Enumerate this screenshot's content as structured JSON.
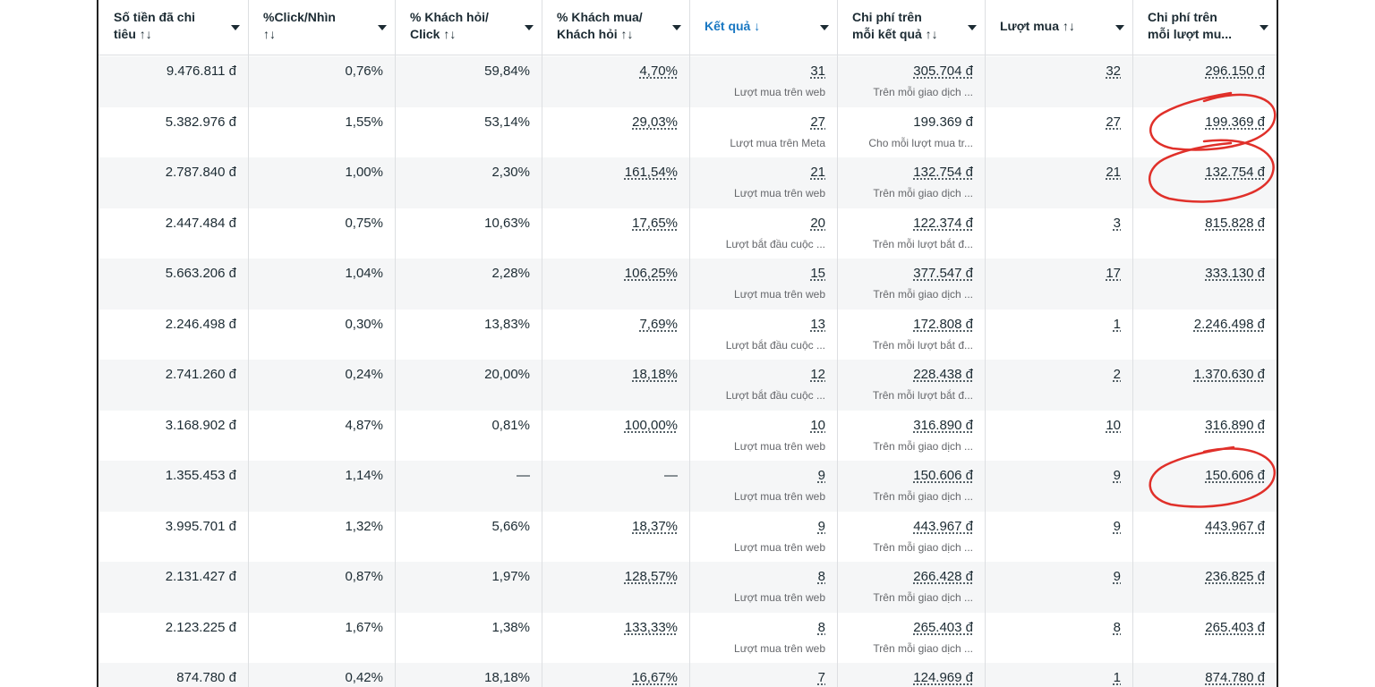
{
  "table": {
    "columns": [
      [
        "Số tiền đã chi",
        "tiêu ↑↓"
      ],
      [
        "%Click/Nhìn",
        "↑↓"
      ],
      [
        "% Khách hỏi/",
        "Click ↑↓"
      ],
      [
        "% Khách mua/",
        "Khách hỏi ↑↓"
      ],
      [
        "Kết quả ↓"
      ],
      [
        "Chi phí trên",
        "mỗi kết quả ↑↓"
      ],
      [
        "Lượt mua ↑↓"
      ],
      [
        "Chi phí trên",
        "mỗi lượt mu..."
      ]
    ],
    "rows": [
      [
        "9.476.811 đ",
        "0,76%",
        "59,84%",
        "4,70%",
        {
          "value": "31",
          "sub": "Lượt mua trên web"
        },
        {
          "value": "305.704 đ",
          "sub": "Trên mỗi giao dịch ..."
        },
        "32",
        "296.150 đ"
      ],
      [
        "5.382.976 đ",
        "1,55%",
        "53,14%",
        "29,03%",
        {
          "value": "27",
          "sub": "Lượt mua trên Meta"
        },
        {
          "value": "199.369 đ",
          "sub": "Cho mỗi lượt mua tr..."
        },
        "27",
        "199.369 đ"
      ],
      [
        "2.787.840 đ",
        "1,00%",
        "2,30%",
        "161,54%",
        {
          "value": "21",
          "sub": "Lượt mua trên web"
        },
        {
          "value": "132.754 đ",
          "sub": "Trên mỗi giao dịch ..."
        },
        "21",
        "132.754 đ"
      ],
      [
        "2.447.484 đ",
        "0,75%",
        "10,63%",
        "17,65%",
        {
          "value": "20",
          "sub": "Lượt bắt đầu cuộc ..."
        },
        {
          "value": "122.374 đ",
          "sub": "Trên mỗi lượt bắt đ..."
        },
        "3",
        "815.828 đ"
      ],
      [
        "5.663.206 đ",
        "1,04%",
        "2,28%",
        "106,25%",
        {
          "value": "15",
          "sub": "Lượt mua trên web"
        },
        {
          "value": "377.547 đ",
          "sub": "Trên mỗi giao dịch ..."
        },
        "17",
        "333.130 đ"
      ],
      [
        "2.246.498 đ",
        "0,30%",
        "13,83%",
        "7,69%",
        {
          "value": "13",
          "sub": "Lượt bắt đầu cuộc ..."
        },
        {
          "value": "172.808 đ",
          "sub": "Trên mỗi lượt bắt đ..."
        },
        "1",
        "2.246.498 đ"
      ],
      [
        "2.741.260 đ",
        "0,24%",
        "20,00%",
        "18,18%",
        {
          "value": "12",
          "sub": "Lượt bắt đầu cuộc ..."
        },
        {
          "value": "228.438 đ",
          "sub": "Trên mỗi lượt bắt đ..."
        },
        "2",
        "1.370.630 đ"
      ],
      [
        "3.168.902 đ",
        "4,87%",
        "0,81%",
        "100,00%",
        {
          "value": "10",
          "sub": "Lượt mua trên web"
        },
        {
          "value": "316.890 đ",
          "sub": "Trên mỗi giao dịch ..."
        },
        "10",
        "316.890 đ"
      ],
      [
        "1.355.453 đ",
        "1,14%",
        "—",
        "—",
        {
          "value": "9",
          "sub": "Lượt mua trên web"
        },
        {
          "value": "150.606 đ",
          "sub": "Trên mỗi giao dịch ..."
        },
        "9",
        "150.606 đ"
      ],
      [
        "3.995.701 đ",
        "1,32%",
        "5,66%",
        "18,37%",
        {
          "value": "9",
          "sub": "Lượt mua trên web"
        },
        {
          "value": "443.967 đ",
          "sub": "Trên mỗi giao dịch ..."
        },
        "9",
        "443.967 đ"
      ],
      [
        "2.131.427 đ",
        "0,87%",
        "1,97%",
        "128,57%",
        {
          "value": "8",
          "sub": "Lượt mua trên web"
        },
        {
          "value": "266.428 đ",
          "sub": "Trên mỗi giao dịch ..."
        },
        "9",
        "236.825 đ"
      ],
      [
        "2.123.225 đ",
        "1,67%",
        "1,38%",
        "133,33%",
        {
          "value": "8",
          "sub": "Lượt mua trên web"
        },
        {
          "value": "265.403 đ",
          "sub": "Trên mỗi giao dịch ..."
        },
        "8",
        "265.403 đ"
      ],
      [
        "874.780 đ",
        "0,42%",
        "18,18%",
        "16,67%",
        "7",
        "124.969 đ",
        "1",
        "874.780 đ"
      ]
    ]
  }
}
